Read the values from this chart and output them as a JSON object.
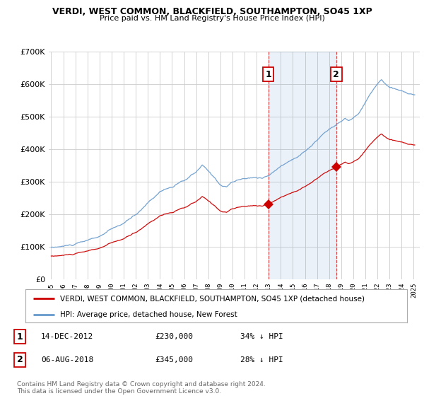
{
  "title": "VERDI, WEST COMMON, BLACKFIELD, SOUTHAMPTON, SO45 1XP",
  "subtitle": "Price paid vs. HM Land Registry's House Price Index (HPI)",
  "legend_line1": "VERDI, WEST COMMON, BLACKFIELD, SOUTHAMPTON, SO45 1XP (detached house)",
  "legend_line2": "HPI: Average price, detached house, New Forest",
  "point1_label": "1",
  "point1_date": "14-DEC-2012",
  "point1_price": "£230,000",
  "point1_pct": "34% ↓ HPI",
  "point2_label": "2",
  "point2_date": "06-AUG-2018",
  "point2_price": "£345,000",
  "point2_pct": "28% ↓ HPI",
  "footer": "Contains HM Land Registry data © Crown copyright and database right 2024.\nThis data is licensed under the Open Government Licence v3.0.",
  "red_color": "#cc0000",
  "blue_color": "#6699cc",
  "background_color": "#ffffff",
  "grid_color": "#cccccc",
  "point1_x": 2012.96,
  "point1_y": 230000,
  "point2_x": 2018.58,
  "point2_y": 345000,
  "ylim": [
    0,
    700000
  ],
  "xlim_start": 1994.8,
  "xlim_end": 2025.5
}
